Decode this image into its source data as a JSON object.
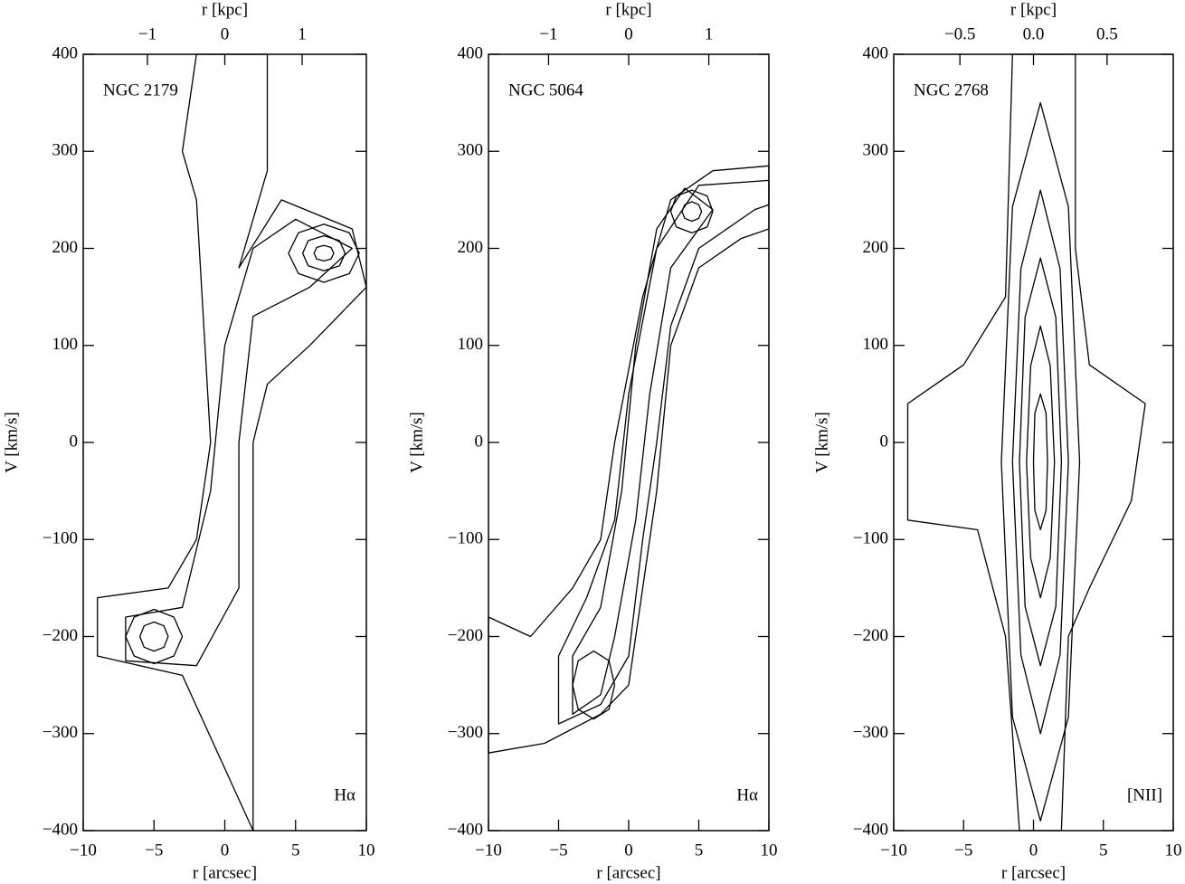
{
  "chart_data": [
    {
      "type": "contour",
      "title": "NGC 2179",
      "annotation": "Hα",
      "xlabel": "r [arcsec]",
      "ylabel": "V [km/s]",
      "x2label": "r [kpc]",
      "color": "#000000",
      "xlim": [
        -10,
        10
      ],
      "xticks": [
        {
          "value": -10,
          "label": "−10"
        },
        {
          "value": -5,
          "label": "−5"
        },
        0,
        5,
        10
      ],
      "ylim": [
        -400,
        400
      ],
      "yticks": [
        {
          "value": -400,
          "label": "−400"
        },
        {
          "value": -300,
          "label": "−300"
        },
        {
          "value": -200,
          "label": "−200"
        },
        {
          "value": -100,
          "label": "−100"
        },
        0,
        100,
        200,
        300,
        400
      ],
      "x2lim": [
        -1.83,
        1.83
      ],
      "x2ticks": [
        {
          "value": -1,
          "label": "−1"
        },
        0,
        1
      ],
      "contours": [
        {
          "x": [
            -9,
            -4,
            -2,
            -1,
            -2,
            -3,
            -2,
            3,
            3,
            1,
            4,
            9,
            10,
            6,
            3,
            2,
            2,
            2,
            2,
            -3,
            -9
          ],
          "y": [
            -160,
            -150,
            -100,
            0,
            250,
            300,
            400,
            400,
            280,
            180,
            250,
            220,
            160,
            100,
            60,
            0,
            -150,
            -220,
            -400,
            -240,
            -220
          ]
        },
        {
          "x": [
            -7,
            -3,
            -1,
            0,
            2,
            5,
            9,
            6,
            2,
            1,
            1,
            -2,
            -7
          ],
          "y": [
            -180,
            -170,
            -50,
            100,
            200,
            230,
            200,
            160,
            130,
            0,
            -150,
            -230,
            -225
          ]
        },
        {
          "x": [
            9.5,
            8.8,
            7,
            5.2,
            4.5,
            5.2,
            7,
            8.8
          ],
          "y": [
            195,
            216,
            225,
            216,
            195,
            174,
            165,
            174
          ]
        },
        {
          "x": [
            8.5,
            8.1,
            7,
            5.9,
            5.5,
            5.9,
            7,
            8.1
          ],
          "y": [
            195,
            208,
            213,
            208,
            195,
            182,
            177,
            182
          ]
        },
        {
          "x": [
            7.7,
            7.5,
            7,
            6.5,
            6.3,
            6.5,
            7,
            7.5
          ],
          "y": [
            195,
            201,
            203,
            201,
            195,
            189,
            187,
            189
          ]
        },
        {
          "x": [
            -3,
            -3.6,
            -5,
            -6.4,
            -7,
            -6.4,
            -5,
            -3.6
          ],
          "y": [
            -200,
            -180,
            -172,
            -180,
            -200,
            -220,
            -228,
            -220
          ]
        },
        {
          "x": [
            -4,
            -4.3,
            -5,
            -5.7,
            -6,
            -5.7,
            -5,
            -4.3
          ],
          "y": [
            -200,
            -189,
            -185,
            -189,
            -200,
            -211,
            -215,
            -211
          ]
        }
      ]
    },
    {
      "type": "contour",
      "title": "NGC 5064",
      "annotation": "Hα",
      "xlabel": "r [arcsec]",
      "ylabel": "V [km/s]",
      "x2label": "r [kpc]",
      "color": "#000000",
      "xlim": [
        -10,
        10
      ],
      "xticks": [
        {
          "value": -10,
          "label": "−10"
        },
        {
          "value": -5,
          "label": "−5"
        },
        0,
        5,
        10
      ],
      "ylim": [
        -400,
        400
      ],
      "yticks": [
        {
          "value": -400,
          "label": "−400"
        },
        {
          "value": -300,
          "label": "−300"
        },
        {
          "value": -200,
          "label": "−200"
        },
        {
          "value": -100,
          "label": "−100"
        },
        0,
        100,
        200,
        300,
        400
      ],
      "x2lim": [
        -1.75,
        1.75
      ],
      "x2ticks": [
        {
          "value": -1,
          "label": "−1"
        },
        0,
        1
      ],
      "contours": [
        {
          "x": [
            -10,
            -6,
            -2,
            0,
            1,
            2,
            3,
            5,
            8,
            10,
            10,
            6,
            3,
            1,
            -1,
            -2,
            -4,
            -7,
            -10
          ],
          "y": [
            -320,
            -310,
            -280,
            -250,
            -150,
            -50,
            100,
            180,
            210,
            220,
            285,
            280,
            250,
            150,
            0,
            -100,
            -150,
            -200,
            -180
          ]
        },
        {
          "x": [
            -5,
            -2,
            0,
            1,
            2,
            3,
            5,
            9,
            10,
            10,
            5,
            2,
            0,
            -1,
            -3,
            -5
          ],
          "y": [
            -290,
            -270,
            -220,
            -100,
            0,
            120,
            200,
            240,
            245,
            270,
            265,
            200,
            50,
            -80,
            -160,
            -220
          ]
        },
        {
          "x": [
            -4,
            -2,
            -1,
            0.5,
            1.5,
            3,
            6,
            4,
            2,
            0.5,
            -0.5,
            -2,
            -4
          ],
          "y": [
            -280,
            -260,
            -200,
            -80,
            50,
            180,
            240,
            262,
            220,
            100,
            -50,
            -170,
            -220
          ]
        },
        {
          "x": [
            6,
            5.6,
            4.5,
            3.4,
            3,
            3.4,
            4.5,
            5.6
          ],
          "y": [
            238,
            254,
            260,
            254,
            238,
            222,
            216,
            222
          ]
        },
        {
          "x": [
            5.2,
            5,
            4.5,
            4,
            3.8,
            4,
            4.5,
            5
          ],
          "y": [
            238,
            245,
            248,
            245,
            238,
            231,
            228,
            231
          ]
        },
        {
          "x": [
            -1,
            -1.4,
            -2.5,
            -3.6,
            -4,
            -3.6,
            -2.5,
            -1.4
          ],
          "y": [
            -250,
            -225,
            -215,
            -225,
            -250,
            -275,
            -285,
            -275
          ]
        }
      ]
    },
    {
      "type": "contour",
      "title": "NGC 2768",
      "annotation": "[NII]",
      "xlabel": "r [arcsec]",
      "ylabel": "V [km/s]",
      "x2label": "r [kpc]",
      "color": "#000000",
      "xlim": [
        -10,
        10
      ],
      "xticks": [
        {
          "value": -10,
          "label": "−10"
        },
        {
          "value": -5,
          "label": "−5"
        },
        0,
        5,
        10
      ],
      "ylim": [
        -400,
        400
      ],
      "yticks": [
        {
          "value": -400,
          "label": "−400"
        },
        {
          "value": -300,
          "label": "−300"
        },
        {
          "value": -200,
          "label": "−200"
        },
        {
          "value": -100,
          "label": "−100"
        },
        0,
        100,
        200,
        300,
        400
      ],
      "x2lim": [
        -0.95,
        0.95
      ],
      "x2ticks": [
        {
          "value": -0.5,
          "label": "−0.5"
        },
        {
          "value": 0,
          "label": "0.0"
        },
        0.5
      ],
      "contours": [
        {
          "x": [
            -1.5,
            -2,
            -5,
            -9,
            -9,
            -4,
            -2,
            -1,
            2,
            2.5,
            4,
            7,
            8,
            4,
            3,
            3
          ],
          "y": [
            400,
            150,
            80,
            40,
            -80,
            -90,
            -200,
            -400,
            -400,
            -200,
            -150,
            -60,
            40,
            80,
            200,
            400
          ]
        },
        {
          "x": [
            3.3,
            2.5,
            0.5,
            -1.5,
            -2.3,
            -1.5,
            0.5,
            2.5
          ],
          "y": [
            -20,
            243,
            350,
            243,
            -20,
            -283,
            -390,
            -283
          ]
        },
        {
          "x": [
            2.5,
            1.9,
            0.5,
            -0.9,
            -1.5,
            -0.9,
            0.5,
            1.9
          ],
          "y": [
            -20,
            179,
            260,
            179,
            -20,
            -219,
            -300,
            -219
          ]
        },
        {
          "x": [
            2,
            1.6,
            0.5,
            -0.6,
            -1,
            -0.6,
            0.5,
            1.6
          ],
          "y": [
            -20,
            129,
            190,
            129,
            -20,
            -169,
            -230,
            -169
          ]
        },
        {
          "x": [
            1.5,
            1.2,
            0.5,
            -0.2,
            -0.5,
            -0.2,
            0.5,
            1.2
          ],
          "y": [
            -20,
            79,
            120,
            79,
            -20,
            -119,
            -160,
            -119
          ]
        },
        {
          "x": [
            1,
            0.9,
            0.5,
            0.1,
            0,
            0.1,
            0.5,
            0.9
          ],
          "y": [
            -20,
            30,
            50,
            30,
            -20,
            -70,
            -90,
            -70
          ]
        }
      ]
    }
  ]
}
